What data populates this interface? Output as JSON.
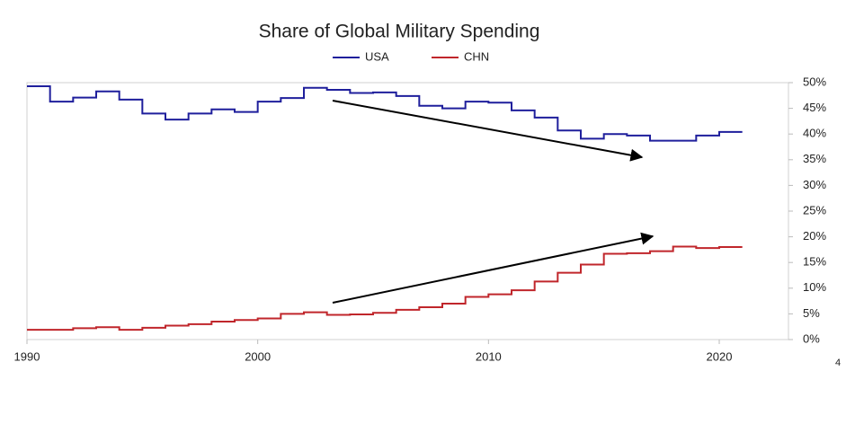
{
  "chart_data": {
    "type": "step",
    "title": "Share of Global Military Spending",
    "x": [
      1990,
      1991,
      1992,
      1993,
      1994,
      1995,
      1996,
      1997,
      1998,
      1999,
      2000,
      2001,
      2002,
      2003,
      2004,
      2005,
      2006,
      2007,
      2008,
      2009,
      2010,
      2011,
      2012,
      2013,
      2014,
      2015,
      2016,
      2017,
      2018,
      2019,
      2020
    ],
    "series": [
      {
        "name": "USA",
        "color": "#1f1f9c",
        "values": [
          49.3,
          46.3,
          47.1,
          48.3,
          46.7,
          44.0,
          42.8,
          44.0,
          44.8,
          44.3,
          46.3,
          47.0,
          49.0,
          48.6,
          48.0,
          48.1,
          47.4,
          45.5,
          45.0,
          46.3,
          46.1,
          44.6,
          43.2,
          40.7,
          39.1,
          40.0,
          39.7,
          38.7,
          38.7,
          39.7,
          40.4
        ]
      },
      {
        "name": "CHN",
        "color": "#c0262b",
        "values": [
          1.9,
          1.9,
          2.2,
          2.4,
          1.9,
          2.3,
          2.7,
          3.0,
          3.5,
          3.8,
          4.1,
          5.0,
          5.3,
          4.8,
          4.9,
          5.2,
          5.8,
          6.3,
          7.0,
          8.3,
          8.8,
          9.6,
          11.3,
          13.0,
          14.6,
          16.7,
          16.8,
          17.2,
          18.1,
          17.8,
          18.0
        ]
      }
    ],
    "xlim": [
      1990,
      2023
    ],
    "xticks": [
      1990,
      2000,
      2010,
      2020
    ],
    "ylim": [
      0,
      50
    ],
    "yticks": [
      {
        "value": 0,
        "label": "0%"
      },
      {
        "value": 5,
        "label": "5%"
      },
      {
        "value": 10,
        "label": "10%"
      },
      {
        "value": 15,
        "label": "15%"
      },
      {
        "value": 20,
        "label": "20%"
      },
      {
        "value": 25,
        "label": "25%"
      },
      {
        "value": 30,
        "label": "30%"
      },
      {
        "value": 35,
        "label": "35%"
      },
      {
        "value": 40,
        "label": "40%"
      },
      {
        "value": 45,
        "label": "45%"
      },
      {
        "value": 50,
        "label": "50%"
      }
    ],
    "y_axis_side": "right",
    "legend": "top",
    "footnote": "4"
  }
}
